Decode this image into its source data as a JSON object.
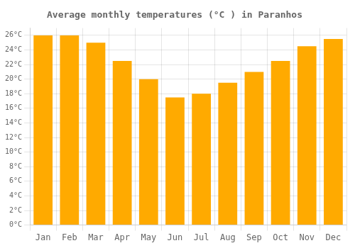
{
  "chart_data": {
    "type": "bar",
    "title": "Average monthly temperatures (°C ) in Paranhos",
    "categories": [
      "Jan",
      "Feb",
      "Mar",
      "Apr",
      "May",
      "Jun",
      "Jul",
      "Aug",
      "Sep",
      "Oct",
      "Nov",
      "Dec"
    ],
    "values": [
      26,
      26,
      25,
      22.5,
      20,
      17.5,
      18,
      19.5,
      21,
      22.5,
      24.5,
      25.5
    ],
    "color": "#FFAA00",
    "ylim": [
      0,
      27
    ],
    "yticks": [
      {
        "value": 0,
        "label": "0°C"
      },
      {
        "value": 2,
        "label": "2°C"
      },
      {
        "value": 4,
        "label": "4°C"
      },
      {
        "value": 6,
        "label": "6°C"
      },
      {
        "value": 8,
        "label": "8°C"
      },
      {
        "value": 10,
        "label": "10°C"
      },
      {
        "value": 12,
        "label": "12°C"
      },
      {
        "value": 14,
        "label": "14°C"
      },
      {
        "value": 16,
        "label": "16°C"
      },
      {
        "value": 18,
        "label": "18°C"
      },
      {
        "value": 20,
        "label": "20°C"
      },
      {
        "value": 22,
        "label": "22°C"
      },
      {
        "value": 24,
        "label": "24°C"
      },
      {
        "value": 26,
        "label": "26°C"
      }
    ],
    "grid": true
  }
}
